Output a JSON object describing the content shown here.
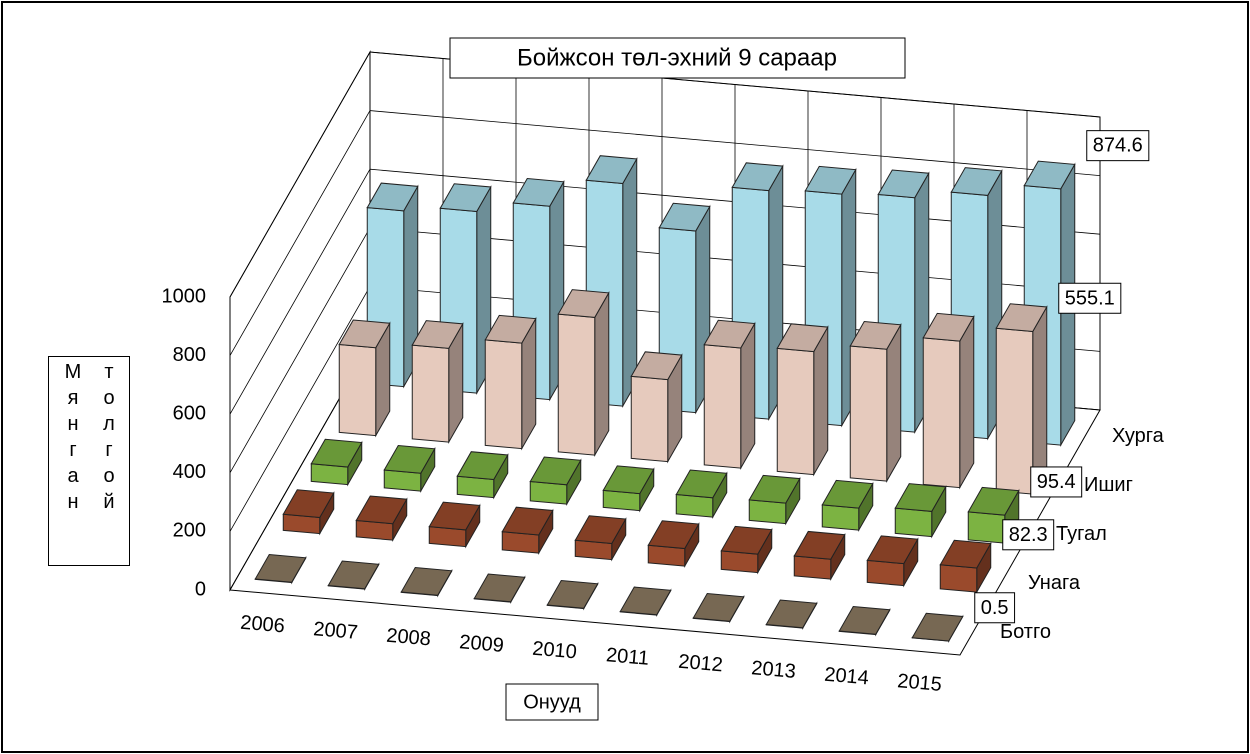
{
  "chart_data": {
    "type": "bar3d",
    "title": "Бойжсон төл-эхний 9 сараар",
    "x_label": "Онууд",
    "y_label": "Мянган толгой",
    "categories": [
      "2006",
      "2007",
      "2008",
      "2009",
      "2010",
      "2011",
      "2012",
      "2013",
      "2014",
      "2015"
    ],
    "series": [
      {
        "name": "Ботго",
        "color": "#8c7a62",
        "values": [
          1.2,
          1.1,
          1.1,
          1.2,
          1.1,
          1.2,
          1.1,
          1.1,
          1.2,
          0.5
        ]
      },
      {
        "name": "Унага",
        "color": "#9a4a2c",
        "values": [
          55,
          56,
          57,
          62,
          55,
          60,
          63,
          68,
          75,
          82.3
        ]
      },
      {
        "name": "Тугал",
        "color": "#7cb342",
        "values": [
          60,
          61,
          62,
          66,
          58,
          66,
          70,
          75,
          86,
          95.4
        ]
      },
      {
        "name": "Ишиг",
        "color": "#e6cabd",
        "values": [
          300,
          320,
          360,
          470,
          280,
          410,
          420,
          450,
          500,
          555.1
        ]
      },
      {
        "name": "Хурга",
        "color": "#a8dbe8",
        "values": [
          600,
          620,
          660,
          760,
          620,
          780,
          790,
          800,
          830,
          874.6
        ]
      }
    ],
    "ylim": [
      0,
      1000
    ],
    "yticks": [
      0,
      200,
      400,
      600,
      800,
      1000
    ],
    "grid": true
  }
}
